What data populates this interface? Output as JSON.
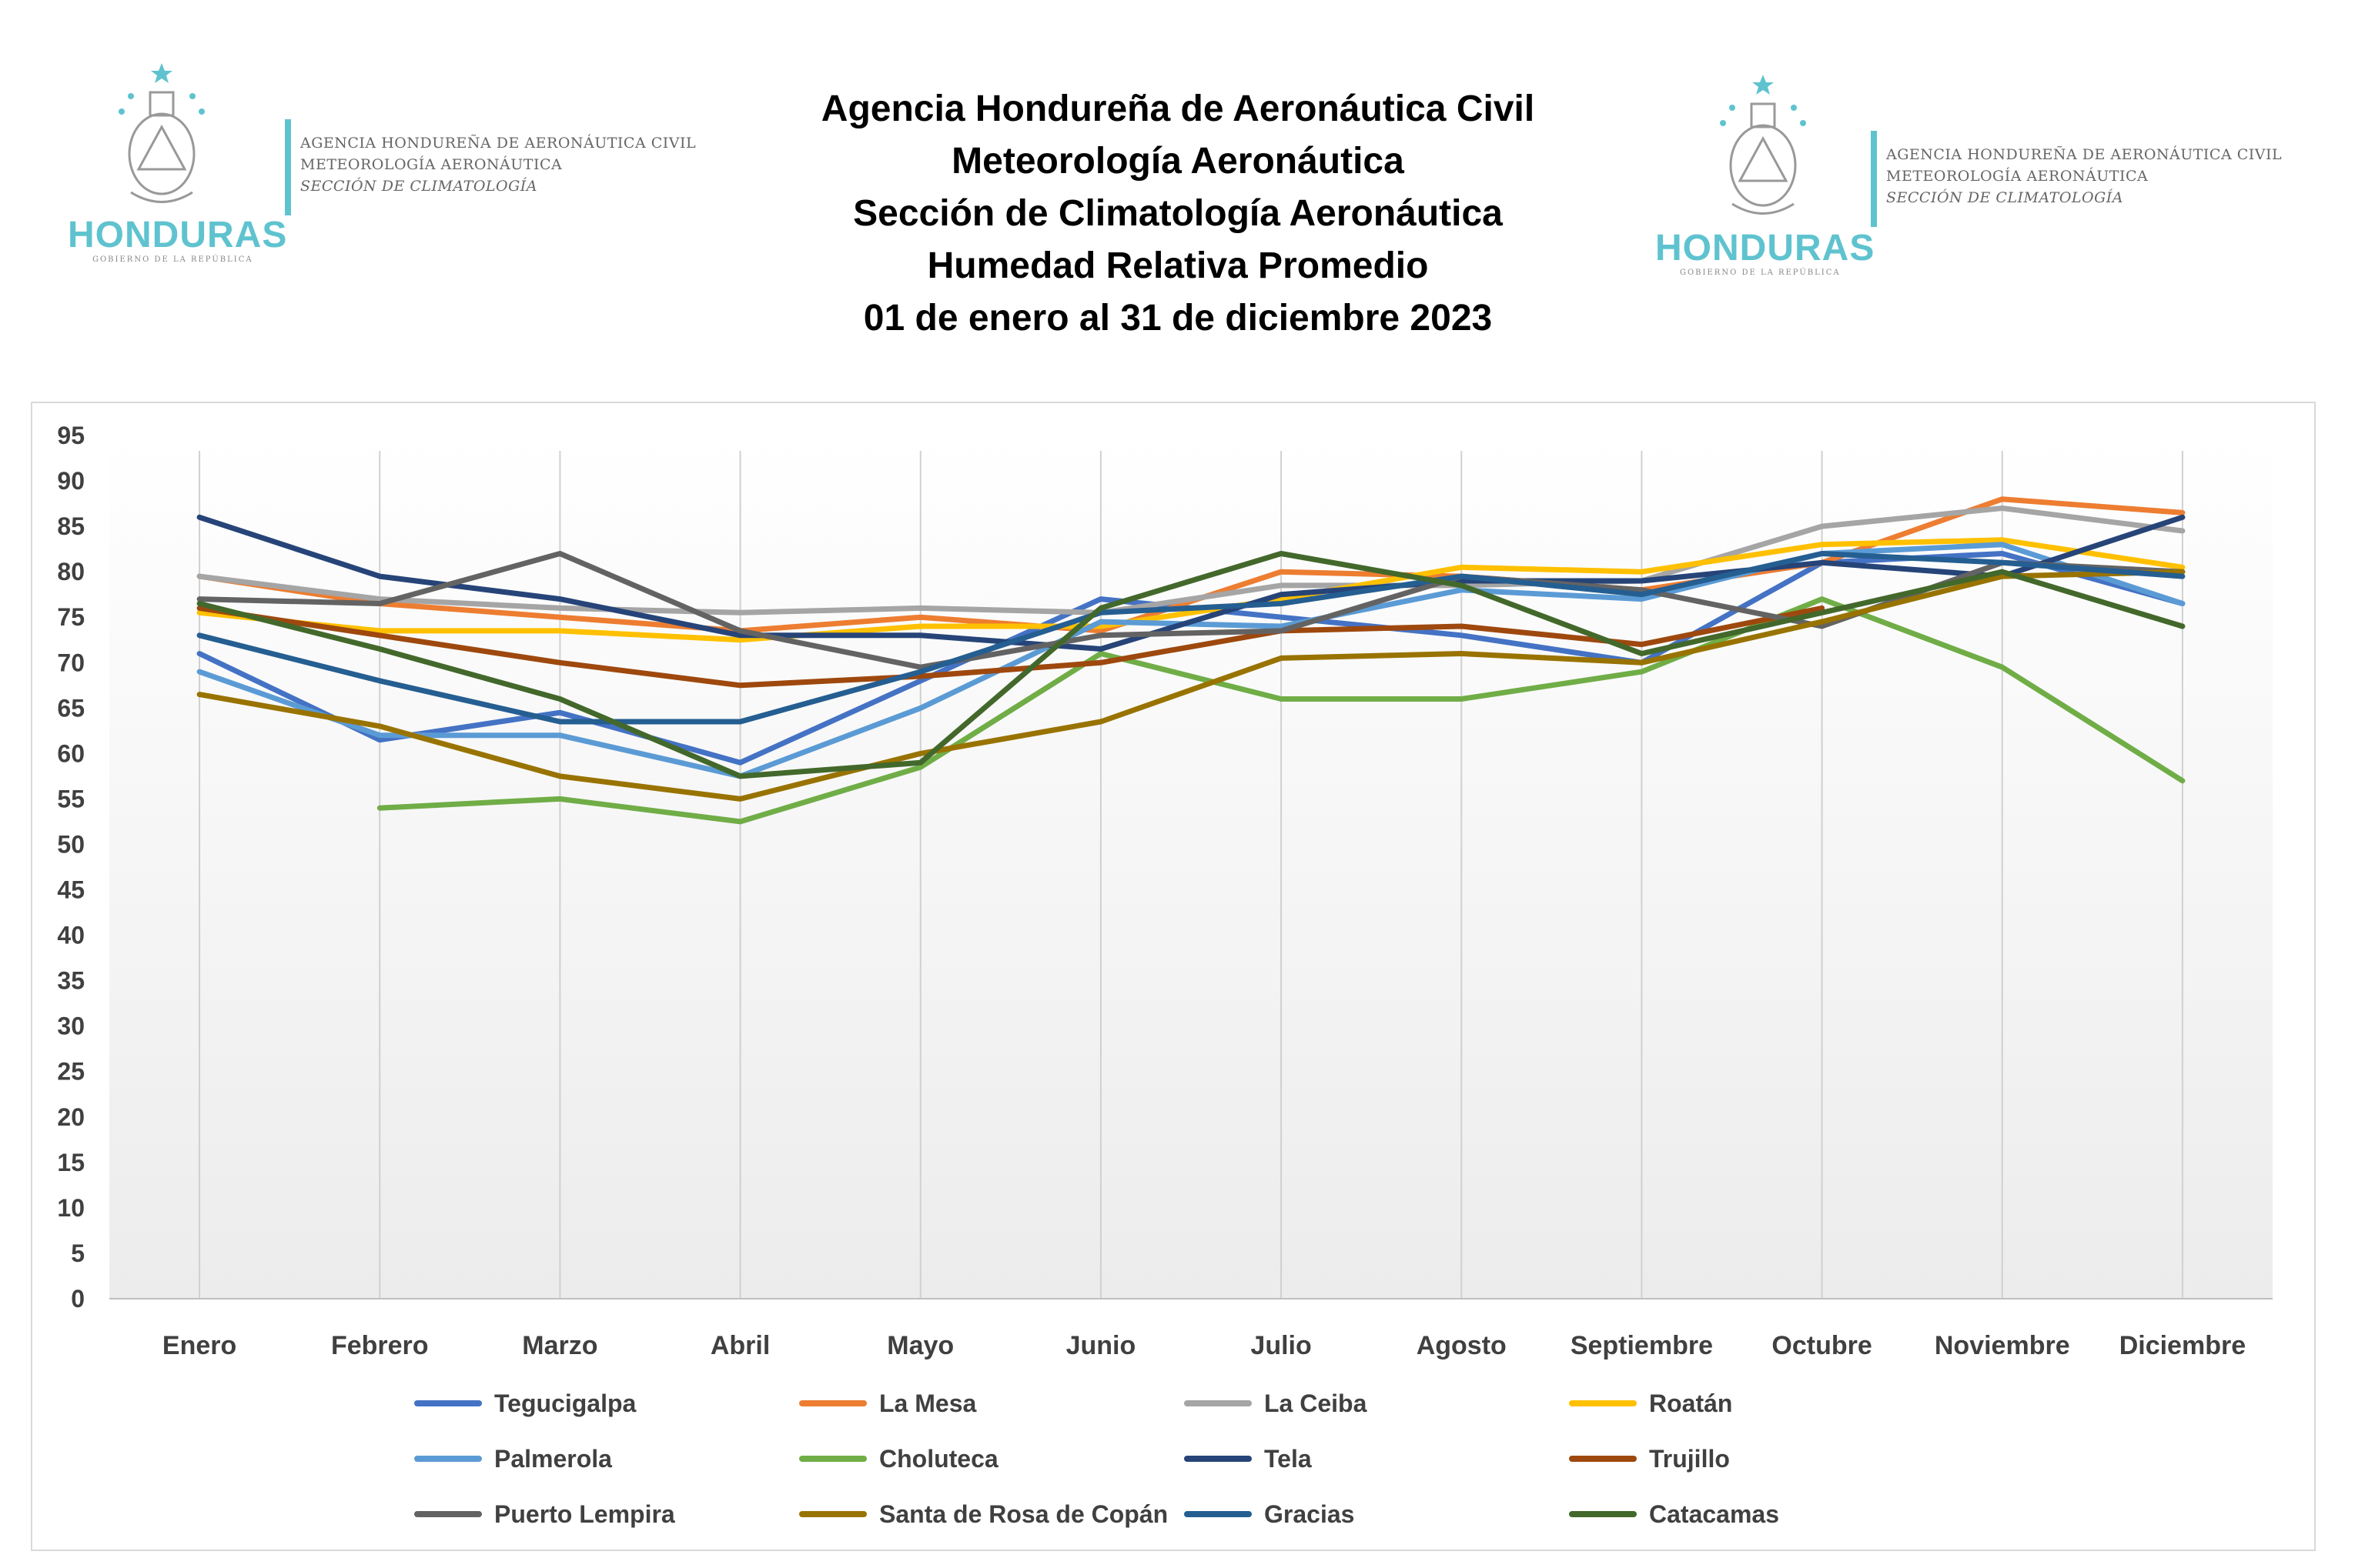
{
  "header": {
    "title_lines": [
      "Agencia Hondureña de Aeronáutica Civil",
      "Meteorología Aeronáutica",
      "Sección de Climatología Aeronáutica",
      "Humedad Relativa Promedio",
      "01 de enero al 31 de diciembre 2023"
    ],
    "logo": {
      "agency_lines": [
        "AGENCIA HONDUREÑA DE AERONÁUTICA CIVIL",
        "METEOROLOGÍA AERONÁUTICA",
        "SECCIÓN DE CLIMATOLOGÍA"
      ],
      "country": "HONDURAS",
      "country_sub": "GOBIERNO DE LA REPÚBLICA",
      "accent_color": "#5fc3cf"
    }
  },
  "chart_data": {
    "type": "line",
    "title": "Humedad Relativa Promedio",
    "xlabel": "",
    "ylabel": "",
    "ylim": [
      0,
      95
    ],
    "yticks": [
      0,
      5,
      10,
      15,
      20,
      25,
      30,
      35,
      40,
      45,
      50,
      55,
      60,
      65,
      70,
      75,
      80,
      85,
      90,
      95
    ],
    "grid": "vertical",
    "legend_position": "bottom",
    "categories": [
      "Enero",
      "Febrero",
      "Marzo",
      "Abril",
      "Mayo",
      "Junio",
      "Julio",
      "Agosto",
      "Septiembre",
      "Octubre",
      "Noviembre",
      "Diciembre"
    ],
    "series": [
      {
        "name": "Tegucigalpa",
        "color": "#4472c4",
        "values": [
          71,
          61.5,
          64.5,
          59,
          68,
          77,
          75,
          73,
          70,
          81,
          82,
          76.5
        ]
      },
      {
        "name": "La Mesa",
        "color": "#ed7d31",
        "values": [
          79.5,
          76.5,
          75,
          73.5,
          75,
          73.5,
          80,
          79.5,
          78,
          81,
          88,
          86.5
        ]
      },
      {
        "name": "La Ceiba",
        "color": "#a5a5a5",
        "values": [
          79.5,
          77,
          76,
          75.5,
          76,
          75.5,
          78.5,
          78.5,
          79,
          85,
          87,
          84.5
        ]
      },
      {
        "name": "Roatán",
        "color": "#ffc000",
        "values": [
          75.5,
          73.5,
          73.5,
          72.5,
          74,
          74,
          77,
          80.5,
          80,
          83,
          83.5,
          80.5
        ]
      },
      {
        "name": "Palmerola",
        "color": "#5b9bd5",
        "values": [
          69,
          62,
          62,
          57.5,
          65,
          74.5,
          74,
          78,
          77,
          82,
          83,
          76.5
        ]
      },
      {
        "name": "Choluteca",
        "color": "#70ad47",
        "values": [
          null,
          54,
          55,
          52.5,
          58.5,
          71,
          66,
          66,
          69,
          77,
          69.5,
          57
        ]
      },
      {
        "name": "Tela",
        "color": "#264478",
        "values": [
          86,
          79.5,
          77,
          73,
          73,
          71.5,
          77.5,
          79,
          79,
          81,
          79.5,
          86
        ]
      },
      {
        "name": "Trujillo",
        "color": "#9e480e",
        "values": [
          76,
          73,
          70,
          67.5,
          68.5,
          70,
          73.5,
          74,
          72,
          76,
          null,
          null
        ]
      },
      {
        "name": "Puerto Lempira",
        "color": "#636363",
        "values": [
          77,
          76.5,
          82,
          73.5,
          69.5,
          73,
          73.5,
          79.5,
          78,
          74,
          81,
          80
        ]
      },
      {
        "name": "Santa de Rosa de Copán",
        "color": "#997300",
        "values": [
          66.5,
          63,
          57.5,
          55,
          60,
          63.5,
          70.5,
          71,
          70,
          74.5,
          79.5,
          80
        ]
      },
      {
        "name": "Gracias",
        "color": "#255e91",
        "values": [
          73,
          68,
          63.5,
          63.5,
          69,
          75.5,
          76.5,
          79.5,
          77.5,
          82,
          81,
          79.5
        ]
      },
      {
        "name": "Catacamas",
        "color": "#43682b",
        "values": [
          76.5,
          71.5,
          66,
          57.5,
          59,
          76,
          82,
          78.5,
          71,
          75.5,
          80,
          74
        ]
      }
    ]
  }
}
